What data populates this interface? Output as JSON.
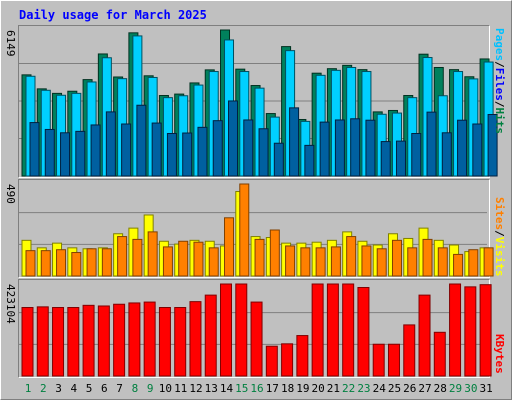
{
  "title": "Daily usage for March 2025",
  "labels": {
    "pages": "Pages",
    "files": "Files",
    "hits": "Hits",
    "sites": "Sites",
    "visits": "Visits",
    "kbytes": "KBytes",
    "sep": "/"
  },
  "colors": {
    "pages": "#00a0c0",
    "files": "#00c0ff",
    "hits": "#008040",
    "sites": "#ff8000",
    "visits": "#ffff00",
    "kbytes": "#ff0000",
    "weekday": "#000000",
    "weekend": "#008040"
  },
  "chart_data": {
    "type": "bar",
    "title": "Daily usage for March 2025",
    "categories": [
      "1",
      "2",
      "3",
      "4",
      "5",
      "6",
      "7",
      "8",
      "9",
      "10",
      "11",
      "12",
      "13",
      "14",
      "15",
      "16",
      "17",
      "18",
      "19",
      "20",
      "21",
      "22",
      "23",
      "24",
      "25",
      "26",
      "27",
      "28",
      "29",
      "30",
      "31"
    ],
    "weekend_days": [
      "1",
      "2",
      "8",
      "9",
      "15",
      "16",
      "22",
      "23",
      "29",
      "30"
    ],
    "panels": [
      {
        "name": "hits",
        "ymax_label": "6149",
        "ylim": [
          0,
          6149
        ],
        "series": [
          {
            "name": "Hits",
            "values": [
              4260,
              3670,
              3480,
              3570,
              4060,
              5140,
              4170,
              6030,
              4220,
              3390,
              3450,
              3920,
              4470,
              6149,
              4500,
              3810,
              2630,
              5450,
              2380,
              4330,
              4520,
              4660,
              4480,
              2700,
              2760,
              3390,
              5130,
              4570,
              4480,
              4180,
              4930
            ]
          },
          {
            "name": "Files",
            "values": [
              4200,
              3610,
              3400,
              3480,
              3960,
              4980,
              4100,
              5900,
              4150,
              3300,
              3380,
              3830,
              4400,
              5730,
              4400,
              3700,
              2480,
              5280,
              2300,
              4240,
              4450,
              4570,
              4400,
              2600,
              2650,
              3300,
              4990,
              3380,
              4400,
              4090,
              4800
            ]
          },
          {
            "name": "Pages",
            "values": [
              2250,
              1960,
              1820,
              1880,
              2150,
              2700,
              2190,
              2980,
              2230,
              1790,
              1810,
              2050,
              2330,
              3160,
              2360,
              1990,
              1380,
              2870,
              1290,
              2270,
              2360,
              2410,
              2350,
              1450,
              1470,
              1790,
              2690,
              1820,
              2350,
              2190,
              2590
            ]
          }
        ]
      },
      {
        "name": "visits",
        "ymax_label": "490",
        "ylim": [
          0,
          490
        ],
        "series": [
          {
            "name": "Visits",
            "values": [
              190,
              150,
              175,
              150,
              145,
              150,
              225,
              255,
              325,
              185,
              170,
              190,
              185,
              160,
              450,
              210,
              205,
              175,
              175,
              180,
              190,
              235,
              185,
              165,
              225,
              200,
              255,
              190,
              165,
              130,
              150
            ]
          },
          {
            "name": "Sites",
            "values": [
              135,
              135,
              140,
              125,
              145,
              145,
              210,
              195,
              235,
              155,
              185,
              180,
              150,
              310,
              490,
              195,
              245,
              160,
              150,
              150,
              155,
              210,
              160,
              145,
              190,
              150,
              195,
              150,
              115,
              140,
              150
            ]
          }
        ]
      },
      {
        "name": "kbytes",
        "ymax_label": "423104",
        "ylim": [
          0,
          423104
        ],
        "series": [
          {
            "name": "KBytes",
            "values": [
              315000,
              318000,
              315000,
              315000,
              325000,
              322000,
              330000,
              336000,
              340000,
              315000,
              315000,
              342000,
              372000,
              423104,
              423104,
              340000,
              137000,
              148000,
              186000,
              423104,
              423104,
              423104,
              407000,
              146000,
              146000,
              235000,
              372000,
              201000,
              423104,
              410000,
              420000
            ]
          }
        ]
      }
    ],
    "grid": true,
    "legend": "right-vertical"
  }
}
